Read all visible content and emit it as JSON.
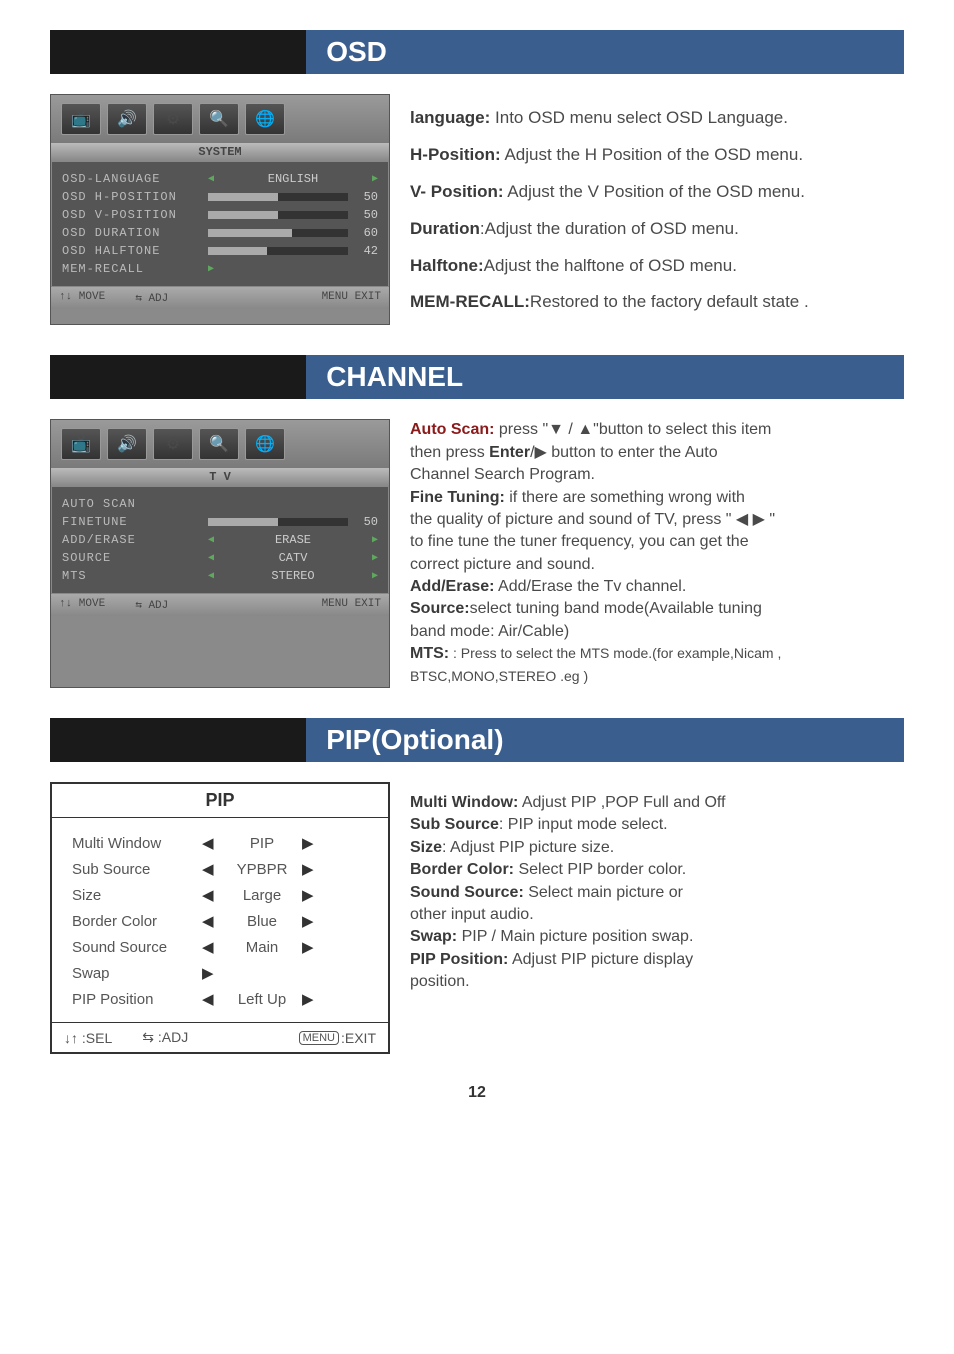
{
  "page_number": "12",
  "sections": {
    "osd": {
      "title": "OSD",
      "screenshot": {
        "label_bar": "SYSTEM",
        "rows": [
          {
            "label": "OSD-LANGUAGE",
            "type": "text",
            "value": "ENGLISH"
          },
          {
            "label": "OSD H-POSITION",
            "type": "bar",
            "fill": 50,
            "num": "50"
          },
          {
            "label": "OSD V-POSITION",
            "type": "bar",
            "fill": 50,
            "num": "50"
          },
          {
            "label": "OSD DURATION",
            "type": "bar",
            "fill": 60,
            "num": "60"
          },
          {
            "label": "OSD HALFTONE",
            "type": "bar",
            "fill": 42,
            "num": "42"
          },
          {
            "label": "MEM-RECALL",
            "type": "arrow"
          }
        ],
        "footer": {
          "move": "↑↓ MOVE",
          "adj": "⇆ ADJ",
          "exit": "MENU EXIT"
        }
      },
      "desc": [
        {
          "b": "language:",
          "t": " Into OSD menu select OSD  Language."
        },
        {
          "b": "H-Position:",
          "t": " Adjust the H Position of the OSD menu."
        },
        {
          "b": "V- Position:",
          "t": " Adjust the V Position of the OSD menu."
        },
        {
          "b": "Duration",
          "t": ":Adjust  the  duration of OSD menu."
        },
        {
          "b": "Halftone:",
          "t": "Adjust  the  halftone  of  OSD menu."
        },
        {
          "b": "MEM-RECALL:",
          "t": "Restored to the factory default state ."
        }
      ]
    },
    "channel": {
      "title": "CHANNEL",
      "screenshot": {
        "label_bar": "T V",
        "rows": [
          {
            "label": "AUTO SCAN",
            "type": "none"
          },
          {
            "label": "FINETUNE",
            "type": "bar",
            "fill": 50,
            "num": "50"
          },
          {
            "label": "ADD/ERASE",
            "type": "text",
            "value": "ERASE"
          },
          {
            "label": "SOURCE",
            "type": "text",
            "value": "CATV"
          },
          {
            "label": "MTS",
            "type": "text",
            "value": "STEREO"
          }
        ],
        "footer": {
          "move": "↑↓ MOVE",
          "adj": "⇆ ADJ",
          "exit": "MENU EXIT"
        }
      },
      "desc_html": "normal"
    },
    "pip": {
      "title": "PIP(Optional)",
      "menu": {
        "head": "PIP",
        "rows": [
          {
            "l": "Multi Window",
            "v": "PIP",
            "la": "◀",
            "ra": "▶"
          },
          {
            "l": "Sub Source",
            "v": "YPBPR",
            "la": "◀",
            "ra": "▶"
          },
          {
            "l": "Size",
            "v": "Large",
            "la": "◀",
            "ra": "▶"
          },
          {
            "l": "Border Color",
            "v": "Blue",
            "la": "◀",
            "ra": "▶"
          },
          {
            "l": "Sound Source",
            "v": "Main",
            "la": "◀",
            "ra": "▶"
          },
          {
            "l": "Swap",
            "v": "",
            "la": "▶",
            "ra": ""
          },
          {
            "l": "PIP Position",
            "v": "Left  Up",
            "la": "◀",
            "ra": "▶"
          }
        ],
        "footer": {
          "sel": "↓↑ :SEL",
          "adj": "⇆ :ADJ",
          "exit": "MENU :EXIT"
        }
      }
    }
  },
  "channel_desc": {
    "auto_scan_label": "Auto Scan:",
    "auto_scan_text1": " press \"▼ / ▲\"button to select this item",
    "auto_scan_text2": "then press ",
    "enter": "Enter",
    "auto_scan_text3": "/▶  button to enter the Auto",
    "auto_scan_text4": "Channel Search Program.",
    "fine_label": "Fine Tuning:",
    "fine_text1": " if there are something wrong with",
    "fine_text2": "the quality of picture and sound of TV, press \" ◀ ▶ \"",
    "fine_text3": "to fine tune the tuner frequency, you can get the",
    "fine_text4": "correct picture and sound.",
    "add_label": "Add/Erase:",
    "add_text": " Add/Erase the Tv channel.",
    "source_label": "Source:",
    "source_text1": "select tuning band mode(Available tuning",
    "source_text2": "band mode: Air/Cable)",
    "mts_label": "MTS:",
    "mts_text1": " :  Press to select the MTS mode.(for example,Nicam ,",
    "mts_text2": "BTSC,MONO,STEREO .eg )"
  },
  "pip_desc": {
    "mw_label": "Multi Window:",
    "mw_text": " Adjust PIP ,POP Full and Off",
    "ss_label": "Sub Source",
    "ss_text": ":   PIP input mode select.",
    "size_label": "Size",
    "size_text": ":   Adjust PIP picture size.",
    "bc_label": "Border Color:",
    "bc_text": " Select PIP border color.",
    "snd_label": "Sound Source:",
    "snd_text": " Select main picture or",
    "snd_text2": "other input audio.",
    "swap_label": "Swap:",
    "swap_text": " PIP / Main picture position swap.",
    "pp_label": "PIP Position:",
    "pp_text": " Adjust PIP picture display",
    "pp_text2": "position."
  }
}
